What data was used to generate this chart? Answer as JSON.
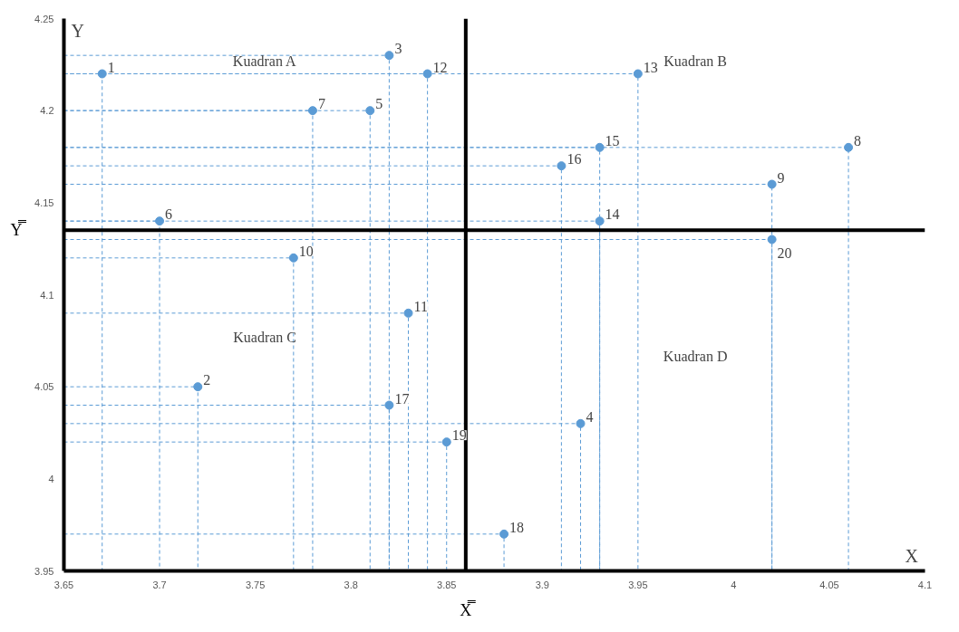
{
  "chart_data": {
    "type": "scatter",
    "xlabel": "X",
    "ylabel": "Y",
    "x": [
      3.67,
      3.72,
      3.82,
      3.92,
      3.81,
      3.7,
      3.78,
      4.06,
      4.02,
      3.77,
      3.83,
      3.84,
      3.95,
      3.93,
      3.93,
      3.91,
      3.82,
      3.88,
      3.85,
      4.02
    ],
    "series": [
      {
        "color": "#5b9bd5",
        "marker": "circle",
        "values": [
          4.22,
          4.05,
          4.23,
          4.03,
          4.2,
          4.14,
          4.2,
          4.18,
          4.16,
          4.12,
          4.09,
          4.22,
          4.22,
          4.14,
          4.18,
          4.17,
          4.04,
          3.97,
          4.02,
          4.13
        ]
      },
      {
        "type": "line",
        "line_style": "dashed",
        "color": "#5b9bd5",
        "x": [
          3.65,
          3.67,
          3.67
        ],
        "values": [
          4.22,
          4.22,
          3.95
        ]
      },
      {
        "type": "line",
        "line_style": "dashed",
        "color": "#5b9bd5",
        "x": [
          3.65,
          3.72,
          3.72
        ],
        "values": [
          4.05,
          4.05,
          3.95
        ]
      },
      {
        "type": "line",
        "line_style": "dashed",
        "color": "#5b9bd5",
        "x": [
          3.65,
          3.82,
          3.82
        ],
        "values": [
          4.23,
          4.23,
          3.95
        ]
      },
      {
        "type": "line",
        "line_style": "dashed",
        "color": "#5b9bd5",
        "x": [
          3.65,
          3.92,
          3.92
        ],
        "values": [
          4.03,
          4.03,
          3.95
        ]
      },
      {
        "type": "line",
        "line_style": "dashed",
        "color": "#5b9bd5",
        "x": [
          3.65,
          3.81,
          3.81
        ],
        "values": [
          4.2,
          4.2,
          3.95
        ]
      },
      {
        "type": "line",
        "line_style": "dashed",
        "color": "#5b9bd5",
        "x": [
          3.65,
          3.7,
          3.7
        ],
        "values": [
          4.14,
          4.14,
          3.95
        ]
      },
      {
        "type": "line",
        "line_style": "dashed",
        "color": "#5b9bd5",
        "x": [
          3.65,
          3.78,
          3.78
        ],
        "values": [
          4.2,
          4.2,
          3.95
        ]
      },
      {
        "type": "line",
        "line_style": "dashed",
        "color": "#5b9bd5",
        "x": [
          3.65,
          4.06,
          4.06
        ],
        "values": [
          4.18,
          4.18,
          3.95
        ]
      },
      {
        "type": "line",
        "line_style": "dashed",
        "color": "#5b9bd5",
        "x": [
          3.65,
          4.02,
          4.02
        ],
        "values": [
          4.16,
          4.16,
          3.95
        ]
      },
      {
        "type": "line",
        "line_style": "dashed",
        "color": "#5b9bd5",
        "x": [
          3.65,
          3.77,
          3.77
        ],
        "values": [
          4.12,
          4.12,
          3.95
        ]
      },
      {
        "type": "line",
        "line_style": "dashed",
        "color": "#5b9bd5",
        "x": [
          3.65,
          3.83,
          3.83
        ],
        "values": [
          4.09,
          4.09,
          3.95
        ]
      },
      {
        "type": "line",
        "line_style": "dashed",
        "color": "#5b9bd5",
        "x": [
          3.65,
          3.84,
          3.84
        ],
        "values": [
          4.22,
          4.22,
          3.95
        ]
      },
      {
        "type": "line",
        "line_style": "dashed",
        "color": "#5b9bd5",
        "x": [
          3.65,
          3.95,
          3.95
        ],
        "values": [
          4.22,
          4.22,
          3.95
        ]
      },
      {
        "type": "line",
        "line_style": "dashed",
        "color": "#5b9bd5",
        "x": [
          3.65,
          3.93,
          3.93
        ],
        "values": [
          4.14,
          4.14,
          3.95
        ]
      },
      {
        "type": "line",
        "line_style": "dashed",
        "color": "#5b9bd5",
        "x": [
          3.65,
          3.93,
          3.93
        ],
        "values": [
          4.18,
          4.18,
          3.95
        ]
      },
      {
        "type": "line",
        "line_style": "dashed",
        "color": "#5b9bd5",
        "x": [
          3.65,
          3.91,
          3.91
        ],
        "values": [
          4.17,
          4.17,
          3.95
        ]
      },
      {
        "type": "line",
        "line_style": "dashed",
        "color": "#5b9bd5",
        "x": [
          3.65,
          3.82,
          3.82
        ],
        "values": [
          4.04,
          4.04,
          3.95
        ]
      },
      {
        "type": "line",
        "line_style": "dashed",
        "color": "#5b9bd5",
        "x": [
          3.65,
          3.88,
          3.88
        ],
        "values": [
          3.97,
          3.97,
          3.95
        ]
      },
      {
        "type": "line",
        "line_style": "dashed",
        "color": "#5b9bd5",
        "x": [
          3.65,
          3.85,
          3.85
        ],
        "values": [
          4.02,
          4.02,
          3.95
        ]
      },
      {
        "type": "line",
        "line_style": "dashed",
        "color": "#5b9bd5",
        "x": [
          3.65,
          4.02,
          4.02
        ],
        "values": [
          4.13,
          4.13,
          3.95
        ]
      }
    ],
    "grid": false,
    "xlim": [
      3.65,
      4.1
    ],
    "xticks": [
      3.65,
      {
        "value": 3.7,
        "label": "3.7"
      },
      3.75,
      {
        "value": 3.8,
        "label": "3.8"
      },
      3.85,
      {
        "value": 3.9,
        "label": "3.9"
      },
      3.95,
      {
        "value": 4.0,
        "label": "4"
      },
      4.05,
      {
        "value": 4.1,
        "label": "4.1"
      }
    ],
    "ylim": [
      3.95,
      4.25
    ],
    "yticks": [
      3.95,
      {
        "value": 4.0,
        "label": "4"
      },
      4.05,
      {
        "value": 4.1,
        "label": "4.1"
      },
      4.15,
      {
        "value": 4.2,
        "label": "4.2"
      },
      4.25
    ],
    "ref_lines": [
      {
        "axis": "x",
        "value": 3.86,
        "label": "X̿",
        "color": "#000000"
      },
      {
        "axis": "y",
        "value": 4.135,
        "label": "Y̿",
        "color": "#000000"
      }
    ],
    "annotations": [
      "Kuadran A",
      "Kuadran B",
      "Kuadran C",
      "Kuadran D",
      {
        "text": "1",
        "x": 3.67,
        "y": 4.22
      },
      {
        "text": "2",
        "x": 3.72,
        "y": 4.05
      },
      {
        "text": "3",
        "x": 3.82,
        "y": 4.23
      },
      {
        "text": "4",
        "x": 3.92,
        "y": 4.03
      },
      {
        "text": "5",
        "x": 3.81,
        "y": 4.2
      },
      {
        "text": "6",
        "x": 3.7,
        "y": 4.14
      },
      {
        "text": "7",
        "x": 3.78,
        "y": 4.2
      },
      {
        "text": "8",
        "x": 4.06,
        "y": 4.18
      },
      {
        "text": "9",
        "x": 4.02,
        "y": 4.16
      },
      {
        "text": "10",
        "x": 3.77,
        "y": 4.12
      },
      {
        "text": "11",
        "x": 3.83,
        "y": 4.09
      },
      {
        "text": "12",
        "x": 3.84,
        "y": 4.22
      },
      {
        "text": "13",
        "x": 3.95,
        "y": 4.22
      },
      {
        "text": "14",
        "x": 3.93,
        "y": 4.14
      },
      {
        "text": "15",
        "x": 3.93,
        "y": 4.18
      },
      {
        "text": "16",
        "x": 3.91,
        "y": 4.17
      },
      {
        "text": "17",
        "x": 3.82,
        "y": 4.04
      },
      {
        "text": "18",
        "x": 3.88,
        "y": 3.97
      },
      {
        "text": "19",
        "x": 3.85,
        "y": 4.02
      },
      {
        "text": "20",
        "x": 4.02,
        "y": 4.13
      }
    ]
  }
}
